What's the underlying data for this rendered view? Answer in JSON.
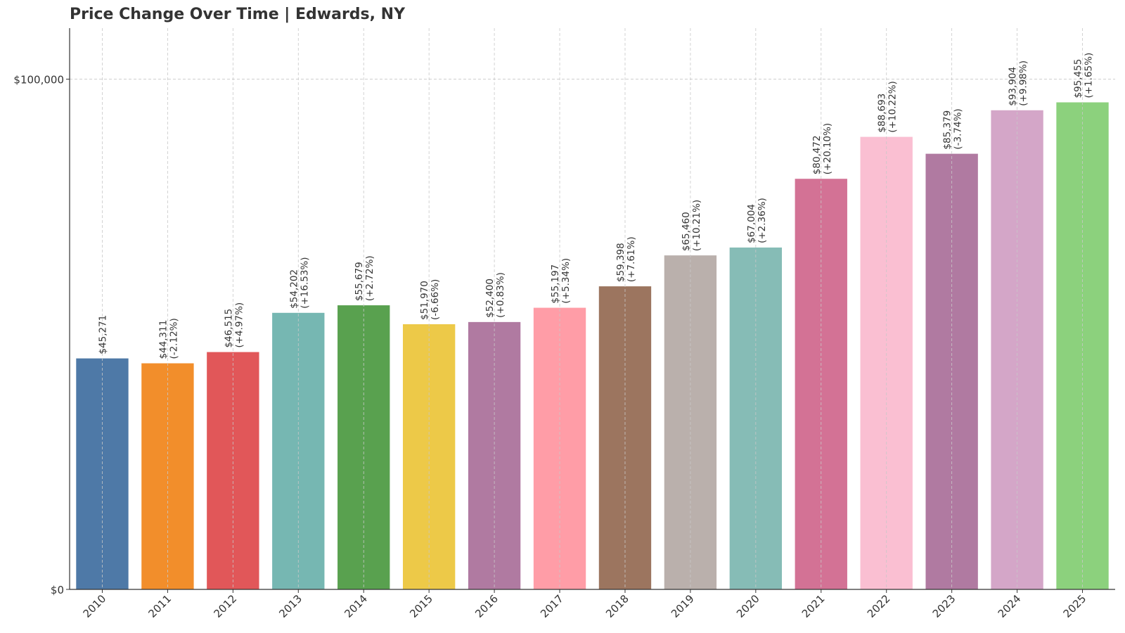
{
  "chart_data": {
    "type": "bar",
    "title": "Price Change Over Time | Edwards, NY",
    "xlabel": "",
    "ylabel": "",
    "ylim": [
      0,
      110000
    ],
    "y_ticks": [
      0,
      100000
    ],
    "y_tick_labels": [
      "$0",
      "$100,000"
    ],
    "grid": true,
    "legend": "none",
    "categories": [
      "2010",
      "2011",
      "2012",
      "2013",
      "2014",
      "2015",
      "2016",
      "2017",
      "2018",
      "2019",
      "2020",
      "2021",
      "2022",
      "2023",
      "2024",
      "2025"
    ],
    "values": [
      45271,
      44311,
      46515,
      54202,
      55679,
      51970,
      52400,
      55197,
      59398,
      65460,
      67004,
      80472,
      88693,
      85379,
      93904,
      95455
    ],
    "value_labels": [
      "$45,271",
      "$44,311",
      "$46,515",
      "$54,202",
      "$55,679",
      "$51,970",
      "$52,400",
      "$55,197",
      "$59,398",
      "$65,460",
      "$67,004",
      "$80,472",
      "$88,693",
      "$85,379",
      "$93,904",
      "$95,455"
    ],
    "change_labels": [
      "",
      "(-2.12%)",
      "(+4.97%)",
      "(+16.53%)",
      "(+2.72%)",
      "(-6.66%)",
      "(+0.83%)",
      "(+5.34%)",
      "(+7.61%)",
      "(+10.21%)",
      "(+2.36%)",
      "(+20.10%)",
      "(+10.22%)",
      "(-3.74%)",
      "(+9.98%)",
      "(+1.65%)"
    ],
    "colors": [
      "#4e79a7",
      "#f28e2b",
      "#e15759",
      "#76b7b2",
      "#59a14f",
      "#edc948",
      "#b07aa1",
      "#ff9da7",
      "#9c755f",
      "#bab0ac",
      "#86bcb6",
      "#d37295",
      "#fabfd2",
      "#b07aa1",
      "#d4a6c8",
      "#8cd17d"
    ]
  }
}
